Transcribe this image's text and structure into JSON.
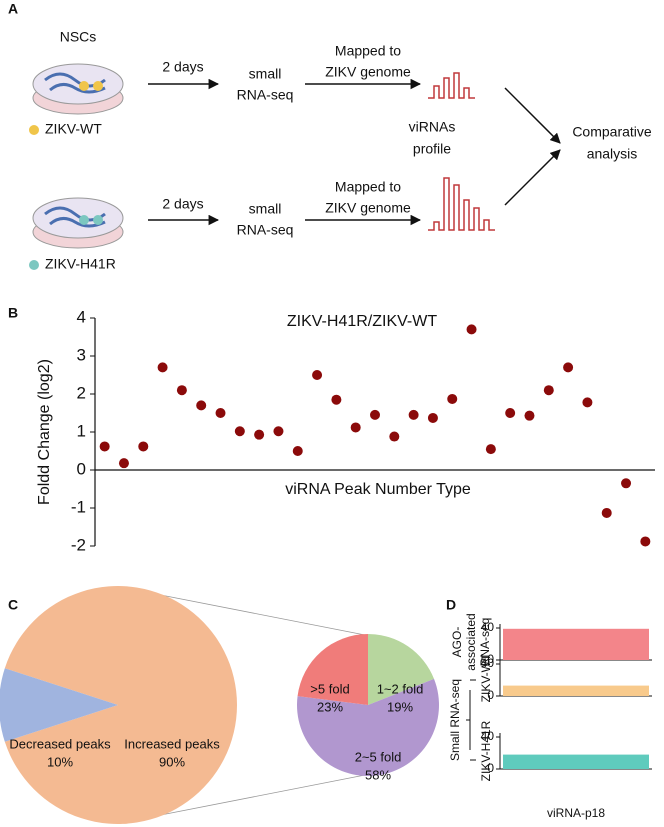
{
  "panel_labels": [
    "A",
    "B",
    "C",
    "D"
  ],
  "diagram": {
    "cell_type": "NSCs",
    "rows": [
      {
        "virus": "ZIKV-WT",
        "time": "2 days",
        "method": [
          "small",
          "RNA-seq"
        ],
        "mapping": [
          "Mapped to",
          "ZIKV genome"
        ]
      },
      {
        "virus": "ZIKV-H41R",
        "time": "2 days",
        "method": [
          "small",
          "RNA-seq"
        ],
        "mapping": [
          "Mapped to",
          "ZIKV genome"
        ]
      }
    ],
    "profile": [
      "viRNAs",
      "profile"
    ],
    "result": [
      "Comparative",
      "analysis"
    ]
  },
  "chart_data": [
    {
      "type": "scatter",
      "title": "ZIKV-H41R/ZIKV-WT",
      "xlabel": "viRNA Peak Number Type",
      "ylabel": "Foldd Change (log2)",
      "x": [
        1,
        2,
        3,
        4,
        5,
        6,
        7,
        8,
        9,
        10,
        11,
        12,
        13,
        14,
        15,
        16,
        17,
        18,
        19,
        20,
        21,
        22,
        23,
        24,
        25,
        26,
        27,
        28,
        29
      ],
      "values": [
        0.62,
        0.18,
        0.62,
        2.7,
        2.1,
        1.7,
        1.5,
        1.02,
        0.93,
        1.02,
        0.5,
        2.5,
        1.85,
        1.12,
        1.45,
        0.88,
        1.45,
        1.37,
        1.87,
        3.7,
        0.55,
        1.5,
        1.43,
        2.1,
        2.7,
        1.78,
        -1.13,
        -0.35,
        -1.88
      ],
      "color": "#8b0a0a",
      "xlim": [
        0.5,
        29.5
      ],
      "ylim": [
        -2,
        4
      ],
      "yticks": [
        -2,
        -1,
        0,
        1,
        2,
        3,
        4
      ]
    },
    {
      "type": "pie",
      "categories": [
        "Increased peaks",
        "Decreased peaks"
      ],
      "values": [
        90,
        10
      ],
      "value_labels": [
        "90%",
        "10%"
      ],
      "colors": [
        "#f4ba92",
        "#a0b4df"
      ]
    },
    {
      "type": "pie",
      "categories": [
        "1~2 fold",
        "2~5 fold",
        ">5 fold"
      ],
      "values": [
        19,
        58,
        23
      ],
      "value_labels": [
        "19%",
        "58%",
        "23%"
      ],
      "colors": [
        "#b7d69e",
        "#b197cf",
        "#f07c7a"
      ]
    },
    {
      "type": "bar",
      "ylabel": [
        "AGO-",
        "associated",
        "RNA-seq"
      ],
      "categories": [
        null
      ],
      "values": [
        39
      ],
      "color": "#f3858a",
      "ylim": [
        0,
        45
      ],
      "yticks": [
        0,
        40
      ]
    },
    {
      "type": "bar",
      "ylabel": [
        "ZIKV-WT"
      ],
      "annotation": "Small RNA-seq",
      "categories": [
        null
      ],
      "values": [
        13
      ],
      "color": "#f8ca8c",
      "ylim": [
        0,
        45
      ],
      "yticks": [
        0,
        40
      ]
    },
    {
      "type": "bar",
      "ylabel": [
        "ZIKV-H41R"
      ],
      "categories": [
        "viRNA-p18"
      ],
      "values": [
        18
      ],
      "color": "#5fcbbd",
      "ylim": [
        0,
        45
      ],
      "yticks": [
        0,
        40
      ]
    }
  ]
}
